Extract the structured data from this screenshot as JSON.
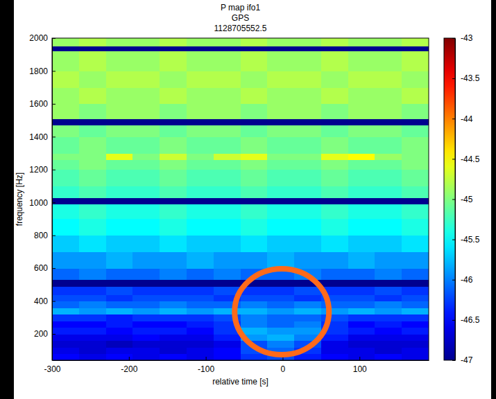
{
  "chart_data": {
    "type": "heatmap",
    "title": [
      "P map ifo1",
      "GPS",
      "1128705552.5"
    ],
    "x_label": "relative time [s]",
    "y_label": "frequency [Hz]",
    "x_edges": [
      -300,
      -265,
      -230,
      -195,
      -160,
      -125,
      -90,
      -55,
      -20,
      15,
      50,
      85,
      120,
      155,
      190
    ],
    "y_edges": [
      40,
      80,
      120,
      160,
      200,
      240,
      280,
      320,
      360,
      400,
      440,
      490,
      530,
      600,
      700,
      800,
      900,
      990,
      1030,
      1100,
      1200,
      1260,
      1300,
      1400,
      1470,
      1510,
      1600,
      1700,
      1800,
      1920,
      1950,
      2000
    ],
    "values": [
      [
        -46.5,
        -46.6,
        -46.5,
        -46.6,
        -46.5,
        -46.6,
        -46.5,
        -46.3,
        -46.2,
        -46.4,
        -46.5,
        -46.6,
        -46.5,
        -46.6
      ],
      [
        -46.6,
        -46.7,
        -46.6,
        -46.6,
        -46.7,
        -46.6,
        -46.5,
        -46.2,
        -46.1,
        -46.3,
        -46.6,
        -46.6,
        -46.7,
        -46.6
      ],
      [
        -46.7,
        -46.7,
        -46.8,
        -46.7,
        -46.7,
        -46.7,
        -46.6,
        -46.2,
        -46.0,
        -46.2,
        -46.6,
        -46.7,
        -46.7,
        -46.7
      ],
      [
        -46.6,
        -46.6,
        -46.6,
        -46.5,
        -46.6,
        -46.6,
        -46.4,
        -45.9,
        -45.8,
        -46.0,
        -46.4,
        -46.6,
        -46.6,
        -46.6
      ],
      [
        -46.4,
        -46.4,
        -46.5,
        -46.4,
        -46.4,
        -46.5,
        -46.3,
        -45.8,
        -45.9,
        -45.9,
        -46.3,
        -46.4,
        -46.5,
        -46.4
      ],
      [
        -46.5,
        -46.5,
        -46.4,
        -46.5,
        -46.5,
        -46.4,
        -46.3,
        -46.0,
        -46.1,
        -46.0,
        -46.3,
        -46.5,
        -46.4,
        -46.5
      ],
      [
        -46.3,
        -46.3,
        -46.4,
        -46.3,
        -46.3,
        -46.3,
        -46.2,
        -46.0,
        -46.1,
        -46.1,
        -46.2,
        -46.3,
        -46.3,
        -46.3
      ],
      [
        -45.8,
        -45.9,
        -45.8,
        -45.9,
        -45.8,
        -45.9,
        -45.8,
        -45.8,
        -45.9,
        -45.8,
        -45.9,
        -45.8,
        -45.9,
        -45.8
      ],
      [
        -46.1,
        -46.0,
        -46.1,
        -46.1,
        -46.0,
        -46.1,
        -46.1,
        -46.0,
        -46.1,
        -46.0,
        -46.1,
        -46.1,
        -46.0,
        -46.1
      ],
      [
        -46.2,
        -46.2,
        -46.3,
        -46.2,
        -46.2,
        -46.2,
        -46.3,
        -46.2,
        -46.2,
        -46.3,
        -46.2,
        -46.2,
        -46.3,
        -46.2
      ],
      [
        -46.3,
        -46.3,
        -46.2,
        -46.3,
        -46.3,
        -46.3,
        -46.2,
        -46.3,
        -46.3,
        -46.2,
        -46.3,
        -46.3,
        -46.2,
        -46.3
      ],
      [
        -47,
        -47,
        -47,
        -47,
        -47,
        -47,
        -47,
        -47,
        -47,
        -47,
        -47,
        -47,
        -47,
        -47
      ],
      [
        -46.1,
        -46.0,
        -46.1,
        -46.1,
        -46.0,
        -46.1,
        -46.0,
        -46.1,
        -46.1,
        -46.0,
        -46.1,
        -46.1,
        -46.0,
        -46.1
      ],
      [
        -45.9,
        -45.9,
        -45.8,
        -45.9,
        -45.9,
        -45.8,
        -45.9,
        -45.9,
        -45.8,
        -45.9,
        -45.9,
        -45.8,
        -45.9,
        -45.9
      ],
      [
        -45.7,
        -45.6,
        -45.7,
        -45.7,
        -45.6,
        -45.7,
        -45.7,
        -45.6,
        -45.7,
        -45.7,
        -45.6,
        -45.7,
        -45.7,
        -45.6
      ],
      [
        -45.5,
        -45.4,
        -45.5,
        -45.5,
        -45.4,
        -45.5,
        -45.5,
        -45.4,
        -45.5,
        -45.5,
        -45.4,
        -45.5,
        -45.5,
        -45.4
      ],
      [
        -45.4,
        -45.3,
        -45.4,
        -45.4,
        -45.3,
        -45.4,
        -45.4,
        -45.3,
        -45.4,
        -45.4,
        -45.3,
        -45.4,
        -45.4,
        -45.3
      ],
      [
        -47,
        -47,
        -47,
        -47,
        -47,
        -47,
        -47,
        -47,
        -47,
        -47,
        -47,
        -47,
        -47,
        -47
      ],
      [
        -45.3,
        -45.2,
        -45.3,
        -45.3,
        -45.2,
        -45.3,
        -45.3,
        -45.2,
        -45.3,
        -45.3,
        -45.2,
        -45.3,
        -45.3,
        -45.2
      ],
      [
        -45.2,
        -45.1,
        -45.2,
        -45.2,
        -45.1,
        -45.2,
        -45.2,
        -45.1,
        -45.2,
        -45.2,
        -45.1,
        -45.2,
        -45.2,
        -45.1
      ],
      [
        -45.1,
        -45.0,
        -45.1,
        -45.1,
        -45.0,
        -45.1,
        -45.1,
        -45.0,
        -45.1,
        -45.1,
        -45.0,
        -45.1,
        -45.1,
        -45.0
      ],
      [
        -45.0,
        -45.0,
        -44.6,
        -45.0,
        -44.7,
        -45.0,
        -44.7,
        -44.6,
        -45.0,
        -45.0,
        -44.6,
        -44.5,
        -44.9,
        -45.0
      ],
      [
        -45.1,
        -45.0,
        -45.1,
        -45.1,
        -45.0,
        -45.1,
        -45.1,
        -45.0,
        -45.1,
        -45.1,
        -45.0,
        -45.1,
        -45.1,
        -45.0
      ],
      [
        -45.0,
        -45.1,
        -45.0,
        -45.0,
        -45.1,
        -45.0,
        -45.0,
        -45.1,
        -45.0,
        -45.0,
        -45.1,
        -45.0,
        -45.0,
        -45.1
      ],
      [
        -47,
        -47,
        -47,
        -47,
        -47,
        -47,
        -47,
        -47,
        -47,
        -47,
        -47,
        -47,
        -47,
        -47
      ],
      [
        -44.9,
        -45.0,
        -44.9,
        -44.9,
        -45.0,
        -44.9,
        -44.9,
        -45.0,
        -44.9,
        -44.9,
        -45.0,
        -44.9,
        -44.9,
        -45.0
      ],
      [
        -44.9,
        -44.8,
        -44.9,
        -44.9,
        -44.8,
        -44.9,
        -44.9,
        -44.8,
        -44.9,
        -44.9,
        -44.8,
        -44.9,
        -44.9,
        -44.8
      ],
      [
        -44.8,
        -44.9,
        -44.8,
        -44.8,
        -44.9,
        -44.8,
        -44.8,
        -44.9,
        -44.8,
        -44.8,
        -44.9,
        -44.8,
        -44.8,
        -44.9
      ],
      [
        -44.9,
        -44.8,
        -44.9,
        -44.9,
        -44.8,
        -44.9,
        -44.9,
        -44.8,
        -44.9,
        -44.9,
        -44.8,
        -44.9,
        -44.9,
        -44.8
      ],
      [
        -47,
        -47,
        -47,
        -47,
        -47,
        -47,
        -47,
        -47,
        -47,
        -47,
        -47,
        -47,
        -47,
        -47
      ],
      [
        -44.9,
        -44.8,
        -44.9,
        -44.9,
        -44.8,
        -44.9,
        -44.9,
        -44.8,
        -44.9,
        -44.9,
        -44.8,
        -44.9,
        -44.9,
        -44.8
      ]
    ],
    "xlim": [
      -300,
      190
    ],
    "ylim": [
      40,
      2000
    ],
    "xticks": [
      -300,
      -200,
      -100,
      0,
      100
    ],
    "yticks": [
      200,
      400,
      600,
      800,
      1000,
      1200,
      1400,
      1600,
      1800,
      2000
    ],
    "colorbar": {
      "range": [
        -47,
        -43
      ],
      "ticks": [
        -47,
        -46.5,
        -46,
        -45.5,
        -45,
        -44.5,
        -44,
        -43.5,
        -43
      ]
    }
  }
}
